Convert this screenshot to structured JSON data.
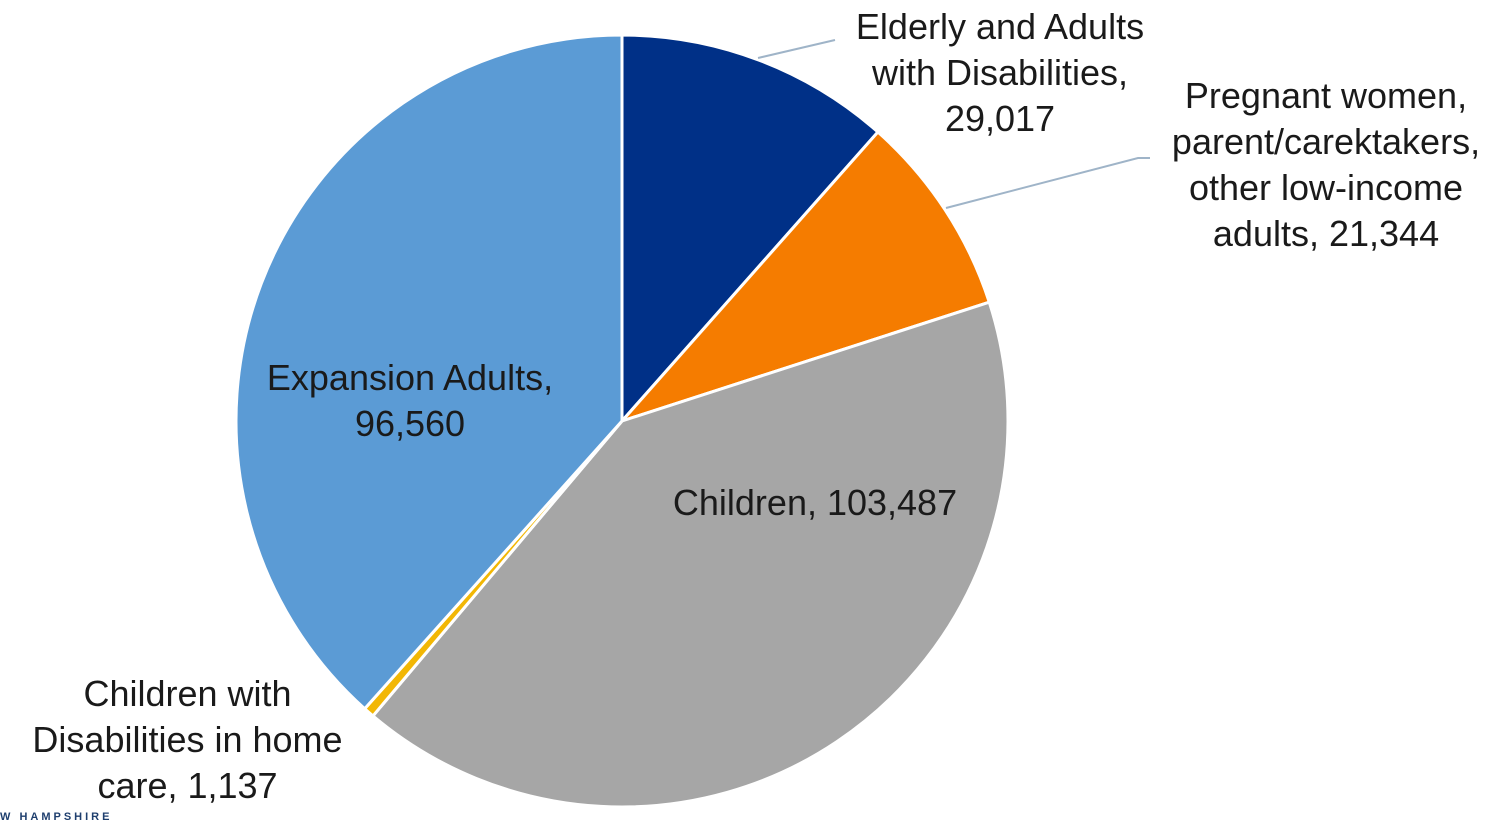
{
  "chart_data": {
    "type": "pie",
    "title": "",
    "slices": [
      {
        "label_lines": [
          "Elderly and Adults",
          "with Disabilities,",
          "29,017"
        ],
        "category": "Elderly and Adults with Disabilities",
        "value": 29017,
        "color": "#003087"
      },
      {
        "label_lines": [
          "Pregnant women,",
          "parent/carektakers,",
          "other low-income",
          "adults, 21,344"
        ],
        "category": "Pregnant women, parent/carektakers, other low-income adults",
        "value": 21344,
        "color": "#F57C00"
      },
      {
        "label_lines": [
          "Children, 103,487"
        ],
        "category": "Children",
        "value": 103487,
        "color": "#A6A6A6"
      },
      {
        "label_lines": [
          "Children with",
          "Disabilities in home",
          "care, 1,137"
        ],
        "category": "Children with Disabilities in home care",
        "value": 1137,
        "color": "#F2B705"
      },
      {
        "label_lines": [
          "Expansion Adults,",
          "96,560"
        ],
        "category": "Expansion Adults",
        "value": 96560,
        "color": "#5B9BD5"
      }
    ],
    "start_angle": "12 o'clock",
    "direction": "clockwise",
    "legend": "none"
  },
  "footer_text": "W HAMPSHIRE"
}
